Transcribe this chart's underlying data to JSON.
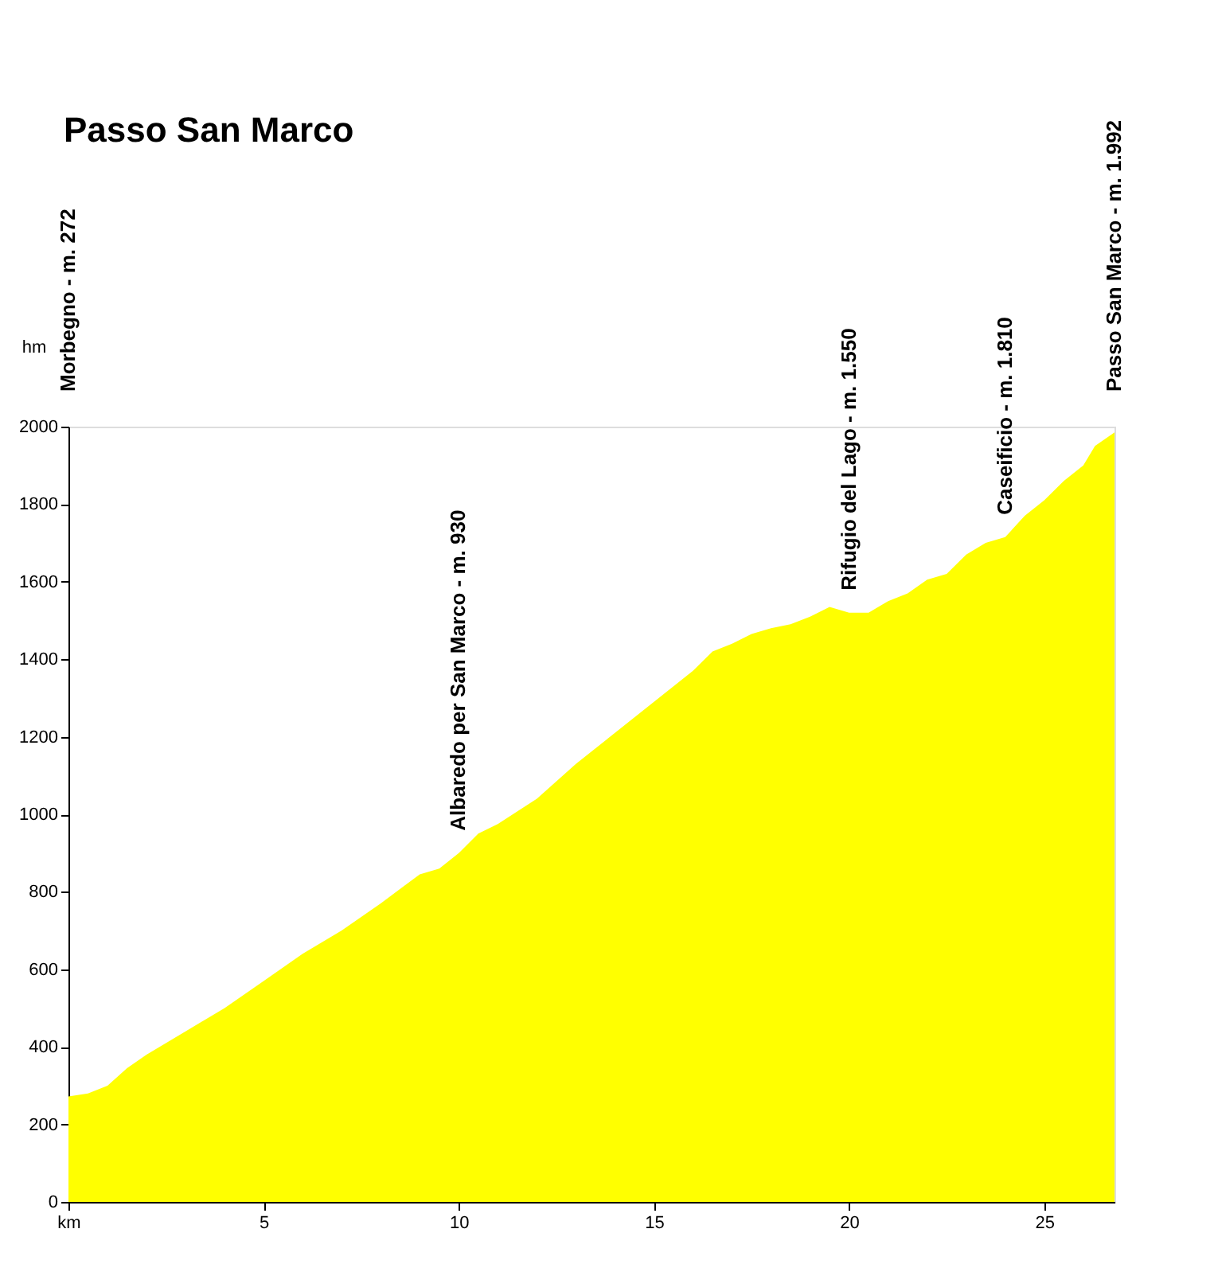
{
  "chart_data": {
    "type": "area",
    "title": "Passo San Marco",
    "ylabel": "hm",
    "x": [
      0,
      0.5,
      1,
      1.5,
      2,
      3,
      4,
      5,
      6,
      7,
      8,
      9,
      9.5,
      10,
      10.5,
      11,
      12,
      13,
      14,
      15,
      16,
      16.5,
      17,
      17.5,
      18,
      18.5,
      19,
      19.5,
      20,
      20.5,
      21,
      21.5,
      22,
      22.5,
      23,
      23.5,
      24,
      24.5,
      25,
      25.5,
      26,
      26.3,
      26.8
    ],
    "series": [
      {
        "color": "#ffff00",
        "values": [
          272,
          280,
          300,
          345,
          380,
          440,
          500,
          570,
          640,
          700,
          770,
          845,
          860,
          900,
          950,
          975,
          1040,
          1130,
          1210,
          1290,
          1370,
          1420,
          1440,
          1465,
          1480,
          1490,
          1510,
          1535,
          1520,
          1520,
          1550,
          1570,
          1605,
          1620,
          1670,
          1700,
          1715,
          1770,
          1810,
          1860,
          1900,
          1950,
          1985
        ]
      }
    ],
    "xlim": [
      0,
      26.8
    ],
    "xticks": [
      {
        "value": 0,
        "label": "km"
      },
      5,
      10,
      15,
      20,
      25
    ],
    "ylim": [
      0,
      2000
    ],
    "yticks": [
      0,
      200,
      400,
      600,
      800,
      1000,
      1200,
      1400,
      1600,
      1800,
      2000
    ],
    "grid": false,
    "annotations": [
      "Morbegno - m. 272",
      {
        "text": "Albaredo per San Marco - m. 930",
        "x": 10,
        "y": 900
      },
      {
        "text": "Rifugio del Lago - m. 1.550",
        "x": 20,
        "y": 1520
      },
      {
        "text": "Caseificio - m. 1.810",
        "x": 24,
        "y": 1715
      },
      "Passo San Marco - m. 1.992"
    ]
  }
}
